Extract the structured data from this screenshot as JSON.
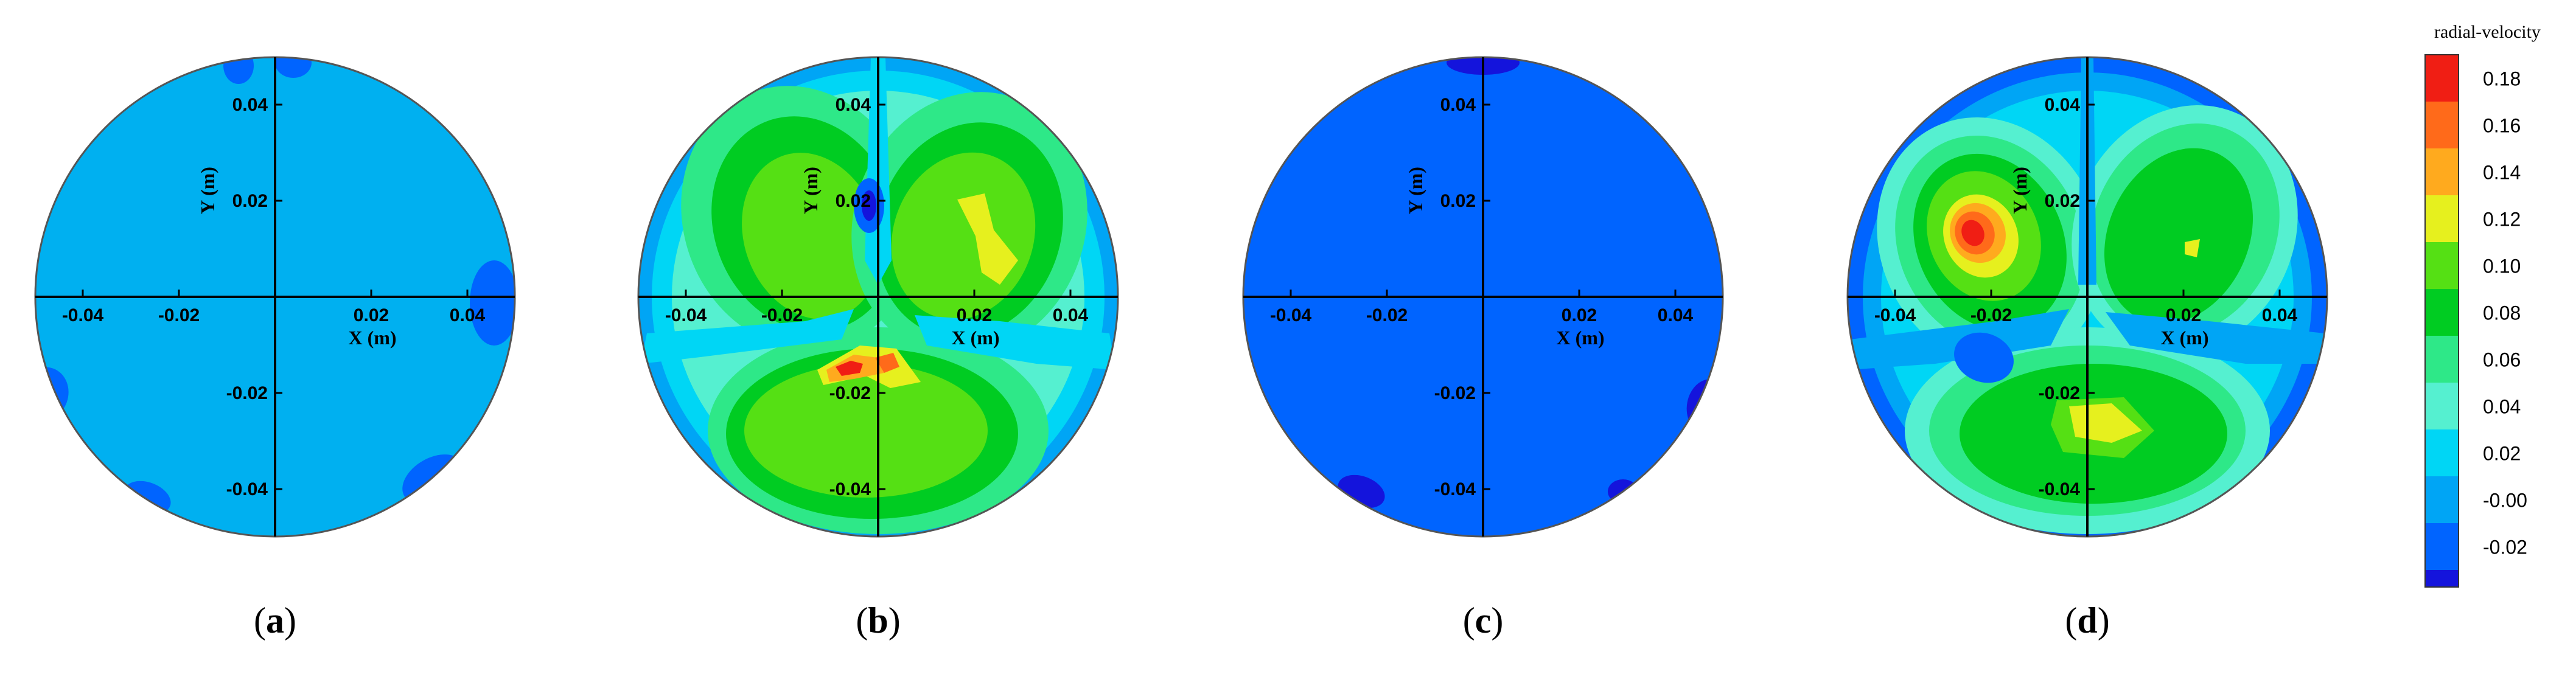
{
  "colors": {
    "background": "#ffffff",
    "axis": "#000000",
    "circle_outline": "#555555",
    "uniform_a": "#00b0f0",
    "uniform_c": "#0064ff"
  },
  "panels": [
    {
      "id": "a",
      "label_letter": "a",
      "caption_open": "(",
      "caption_close": ")",
      "fill": "uniform-light",
      "xlabel": "X (m)",
      "ylabel": "Y (m)",
      "xticks": [
        "-0.04",
        "-0.02",
        "0.02",
        "0.04"
      ],
      "yticks": [
        "0.04",
        "0.02",
        "-0.02",
        "-0.04"
      ]
    },
    {
      "id": "b",
      "label_letter": "b",
      "caption_open": "(",
      "caption_close": ")",
      "fill": "contour",
      "xlabel": "X (m)",
      "ylabel": "Y (m)",
      "xticks": [
        "-0.04",
        "-0.02",
        "0.02",
        "0.04"
      ],
      "yticks": [
        "0.04",
        "0.02",
        "-0.02",
        "-0.04"
      ]
    },
    {
      "id": "c",
      "label_letter": "c",
      "caption_open": "(",
      "caption_close": ")",
      "fill": "uniform-dark",
      "xlabel": "X (m)",
      "ylabel": "Y (m)",
      "xticks": [
        "-0.04",
        "-0.02",
        "0.02",
        "0.04"
      ],
      "yticks": [
        "0.04",
        "0.02",
        "-0.02",
        "-0.04"
      ]
    },
    {
      "id": "d",
      "label_letter": "d",
      "caption_open": "(",
      "caption_close": ")",
      "fill": "contour",
      "xlabel": "X (m)",
      "ylabel": "Y (m)",
      "xticks": [
        "-0.04",
        "-0.02",
        "0.02",
        "0.04"
      ],
      "yticks": [
        "0.04",
        "0.02",
        "-0.02",
        "-0.04"
      ]
    }
  ],
  "legend": {
    "title": "radial-velocity",
    "levels": [
      {
        "label": "0.18",
        "color": "#f01e14"
      },
      {
        "label": "0.16",
        "color": "#ff6a1a"
      },
      {
        "label": "0.14",
        "color": "#ffaa1e"
      },
      {
        "label": "0.12",
        "color": "#e6f01e"
      },
      {
        "label": "0.10",
        "color": "#55e014"
      },
      {
        "label": "0.08",
        "color": "#00cc22"
      },
      {
        "label": "0.06",
        "color": "#2ee888"
      },
      {
        "label": "0.04",
        "color": "#55f0d0"
      },
      {
        "label": "0.02",
        "color": "#00d6f5"
      },
      {
        "label": "-0.00",
        "color": "#00a5f5"
      },
      {
        "label": "-0.02",
        "color": "#0064ff"
      }
    ],
    "bottom_color": "#1414dc"
  }
}
